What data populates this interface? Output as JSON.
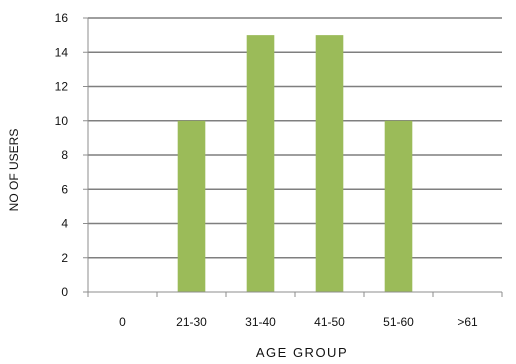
{
  "chart_data": {
    "type": "bar",
    "title": "",
    "xlabel": "AGE GROUP",
    "ylabel": "NO OF USERS",
    "categories": [
      "0",
      "21-30",
      "31-40",
      "41-50",
      "51-60",
      ">61"
    ],
    "values": [
      0,
      10,
      15,
      15,
      10,
      0
    ],
    "ylim": [
      0,
      16
    ],
    "yticks": [
      0,
      2,
      4,
      6,
      8,
      10,
      12,
      14,
      16
    ],
    "grid": true,
    "legend": "none",
    "bar_color": "#9bbb59",
    "grid_color": "#7f7f7f"
  }
}
